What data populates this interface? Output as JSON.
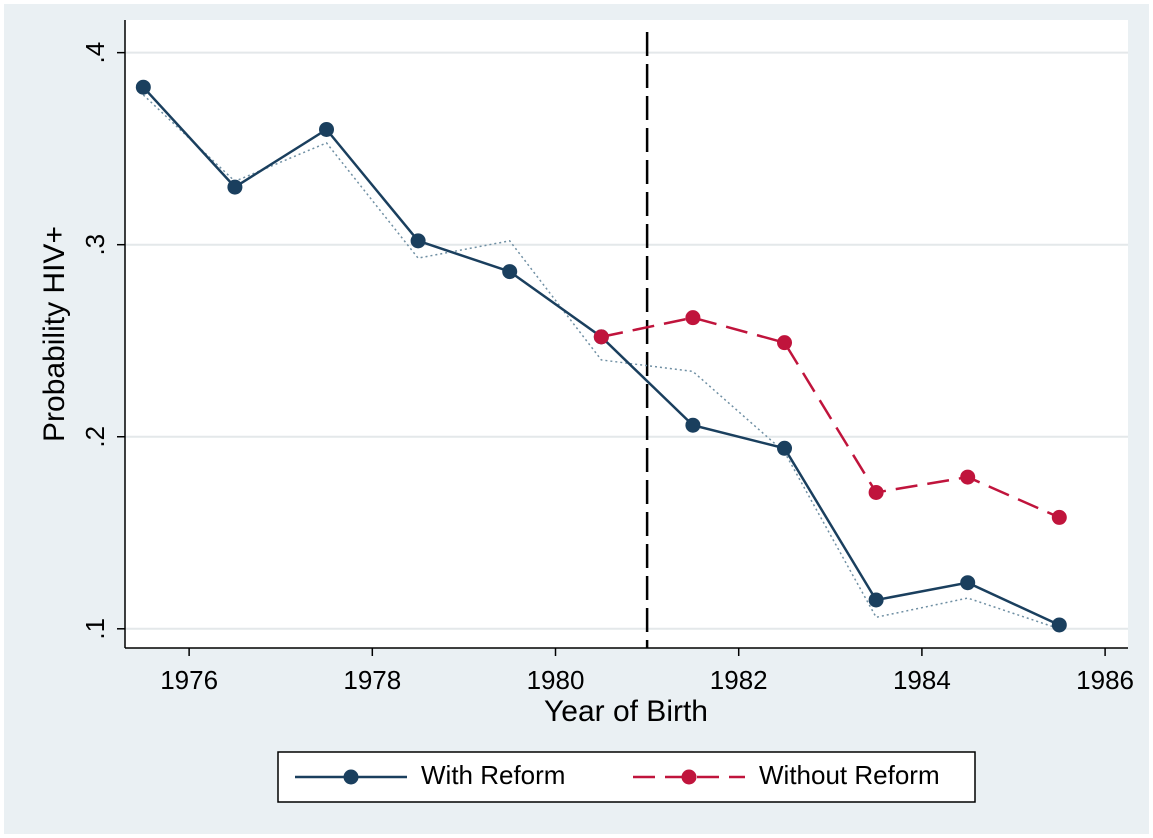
{
  "chart_data": {
    "type": "line",
    "x_label": "Year of Birth",
    "y_label": "Probability HIV+",
    "x": [
      1975.5,
      1976.5,
      1977.5,
      1978.5,
      1979.5,
      1980.5,
      1981.5,
      1982.5,
      1983.5,
      1984.5,
      1985.5
    ],
    "series": [
      {
        "name": "With Reform",
        "color": "#1a3f5e",
        "style": "solid",
        "marker": true,
        "values": [
          0.382,
          0.33,
          0.36,
          0.302,
          0.286,
          0.252,
          0.206,
          0.194,
          0.115,
          0.124,
          0.102
        ]
      },
      {
        "name": "Without Reform",
        "color": "#c0143c",
        "style": "dashed",
        "marker": true,
        "values": [
          null,
          null,
          null,
          null,
          null,
          0.252,
          0.262,
          0.249,
          0.171,
          0.179,
          0.158
        ]
      },
      {
        "color": "#6f8fa3",
        "style": "dotted",
        "marker": false,
        "values": [
          0.378,
          0.333,
          0.353,
          0.293,
          0.302,
          0.24,
          0.234,
          0.192,
          0.106,
          0.116,
          0.1
        ]
      }
    ],
    "vline": 1981,
    "xlim": [
      1975.3,
      1986.25
    ],
    "xticks": [
      1976,
      1978,
      1980,
      1982,
      1984,
      1986
    ],
    "ylim": [
      0.09,
      0.417
    ],
    "yticks": [
      {
        "value": 0.1,
        "label": ".1"
      },
      {
        "value": 0.2,
        "label": ".2"
      },
      {
        "value": 0.3,
        "label": ".3"
      },
      {
        "value": 0.4,
        "label": ".4"
      }
    ],
    "grid": true,
    "legend": "bottom"
  }
}
